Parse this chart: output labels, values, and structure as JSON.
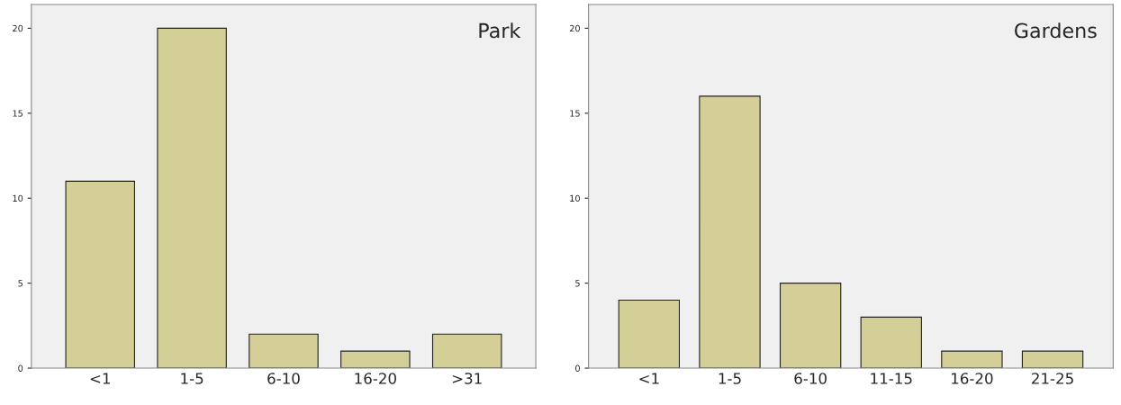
{
  "chart_data": [
    {
      "type": "bar",
      "title": "Park",
      "categories": [
        "<1",
        "1-5",
        "6-10",
        "16-20",
        ">31"
      ],
      "values": [
        11,
        20,
        2,
        1,
        2
      ],
      "color": "#d3cf97",
      "ylim": [
        0,
        21.4
      ],
      "yticks": [
        0,
        5,
        10,
        15,
        20
      ],
      "grid": false,
      "legend": false
    },
    {
      "type": "bar",
      "title": "Gardens",
      "categories": [
        "<1",
        "1-5",
        "6-10",
        "11-15",
        "16-20",
        "21-25"
      ],
      "values": [
        4,
        16,
        5,
        3,
        1,
        1
      ],
      "color": "#d3cf97",
      "ylim": [
        0,
        21.4
      ],
      "yticks": [
        0,
        5,
        10,
        15,
        20
      ],
      "grid": false,
      "legend": false
    }
  ]
}
